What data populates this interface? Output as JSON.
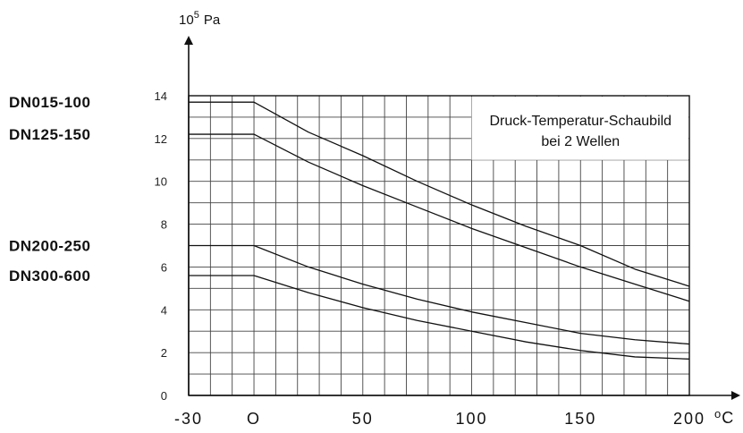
{
  "chart_data": {
    "type": "line",
    "title": "Druck-Temperatur-Schaubild",
    "subtitle": "bei 2 Wellen",
    "xlabel": "°C",
    "ylabel": "10^5 Pa",
    "y_unit_base": "10",
    "y_unit_exp": "5",
    "y_unit_name": "Pa",
    "x_unit_deg": "o",
    "x_unit_name": "C",
    "xlim": [
      -30,
      200
    ],
    "ylim": [
      0,
      14
    ],
    "x_ticks": [
      -30,
      0,
      50,
      100,
      150,
      200
    ],
    "x_tick_labels": [
      "-30",
      "O",
      "50",
      "100",
      "150",
      "200"
    ],
    "y_ticks": [
      0,
      2,
      4,
      6,
      8,
      10,
      12,
      14
    ],
    "grid": true,
    "series": [
      {
        "name": "DN015-100",
        "x": [
          -30,
          0,
          25,
          50,
          75,
          100,
          125,
          150,
          175,
          200
        ],
        "y": [
          13.7,
          13.7,
          12.3,
          11.2,
          10.0,
          8.9,
          7.9,
          7.0,
          5.9,
          5.1
        ]
      },
      {
        "name": "DN125-150",
        "x": [
          -30,
          0,
          25,
          50,
          75,
          100,
          125,
          150,
          175,
          200
        ],
        "y": [
          12.2,
          12.2,
          10.9,
          9.8,
          8.8,
          7.8,
          6.9,
          6.0,
          5.2,
          4.4
        ]
      },
      {
        "name": "DN200-250",
        "x": [
          -30,
          0,
          25,
          50,
          75,
          100,
          125,
          150,
          175,
          200
        ],
        "y": [
          7.0,
          7.0,
          6.0,
          5.2,
          4.5,
          3.9,
          3.4,
          2.9,
          2.6,
          2.4
        ]
      },
      {
        "name": "DN300-600",
        "x": [
          -30,
          0,
          25,
          50,
          75,
          100,
          125,
          150,
          175,
          200
        ],
        "y": [
          5.6,
          5.6,
          4.8,
          4.1,
          3.5,
          3.0,
          2.5,
          2.1,
          1.8,
          1.7
        ]
      }
    ]
  }
}
